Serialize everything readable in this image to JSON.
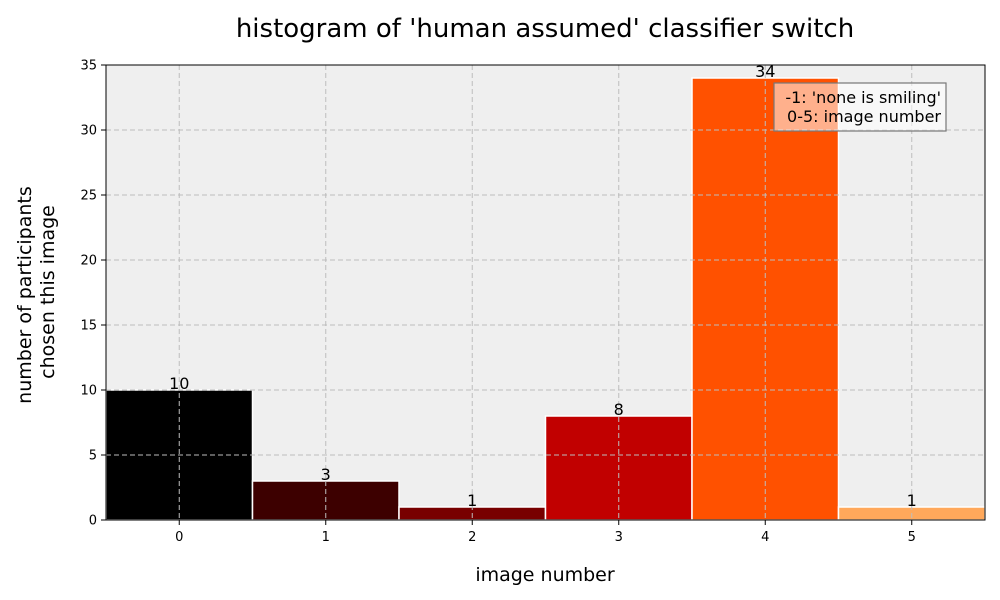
{
  "chart_data": {
    "type": "bar",
    "title": "histogram of 'human assumed' classifier switch",
    "xlabel": "image number",
    "ylabel_lines": [
      "number of participants",
      "chosen this image"
    ],
    "categories": [
      "0",
      "1",
      "2",
      "3",
      "4",
      "5"
    ],
    "values": [
      10,
      3,
      1,
      8,
      34,
      1
    ],
    "data_labels": [
      "10",
      "3",
      "1",
      "8",
      "34",
      "1"
    ],
    "bar_colors": [
      "#000000",
      "#3d0000",
      "#780000",
      "#c10000",
      "#ff5100",
      "#ffa85b"
    ],
    "xlim": [
      -0.5,
      5.5
    ],
    "ylim": [
      0,
      35
    ],
    "yticks": [
      0,
      5,
      10,
      15,
      20,
      25,
      30,
      35
    ],
    "ytick_labels": [
      "0",
      "5",
      "10",
      "15",
      "20",
      "25",
      "30",
      "35"
    ],
    "grid": true,
    "background_color": "#efefef",
    "legend_placement": "top-right",
    "annotation_lines": [
      "-1: 'none is smiling'",
      "0-5: image number"
    ]
  }
}
